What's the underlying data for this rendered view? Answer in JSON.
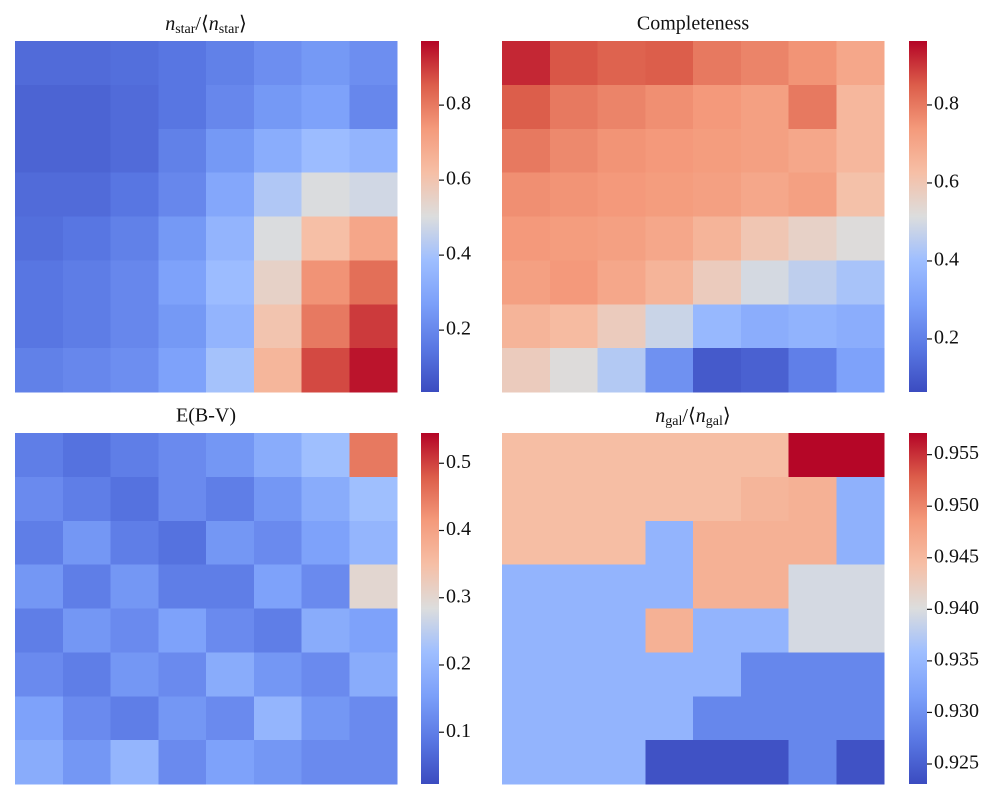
{
  "chart_data": [
    {
      "type": "heatmap",
      "title": [
        "n",
        "star",
        "/⟨",
        "n",
        "star",
        "⟩"
      ],
      "z": [
        [
          0.12,
          0.12,
          0.13,
          0.15,
          0.18,
          0.22,
          0.25,
          0.22
        ],
        [
          0.1,
          0.1,
          0.12,
          0.15,
          0.2,
          0.25,
          0.28,
          0.2
        ],
        [
          0.1,
          0.1,
          0.12,
          0.18,
          0.25,
          0.32,
          0.38,
          0.35
        ],
        [
          0.12,
          0.12,
          0.15,
          0.2,
          0.3,
          0.42,
          0.5,
          0.48
        ],
        [
          0.13,
          0.15,
          0.18,
          0.25,
          0.35,
          0.5,
          0.62,
          0.7
        ],
        [
          0.15,
          0.17,
          0.2,
          0.28,
          0.38,
          0.55,
          0.75,
          0.82
        ],
        [
          0.15,
          0.17,
          0.2,
          0.25,
          0.35,
          0.6,
          0.8,
          0.9
        ],
        [
          0.18,
          0.2,
          0.22,
          0.28,
          0.4,
          0.65,
          0.88,
          0.95
        ]
      ],
      "zlim": [
        0.035,
        0.971
      ],
      "cticks": [
        0.2,
        0.4,
        0.6,
        0.8
      ],
      "colormap": "coolwarm"
    },
    {
      "type": "heatmap",
      "title": "Completeness",
      "z": [
        [
          0.92,
          0.86,
          0.84,
          0.85,
          0.8,
          0.78,
          0.75,
          0.7
        ],
        [
          0.85,
          0.8,
          0.78,
          0.76,
          0.74,
          0.72,
          0.8,
          0.65
        ],
        [
          0.8,
          0.77,
          0.75,
          0.74,
          0.73,
          0.72,
          0.7,
          0.65
        ],
        [
          0.76,
          0.75,
          0.74,
          0.73,
          0.72,
          0.7,
          0.72,
          0.62
        ],
        [
          0.74,
          0.73,
          0.72,
          0.7,
          0.66,
          0.6,
          0.56,
          0.52
        ],
        [
          0.72,
          0.74,
          0.7,
          0.66,
          0.58,
          0.5,
          0.46,
          0.42
        ],
        [
          0.66,
          0.64,
          0.58,
          0.48,
          0.38,
          0.34,
          0.36,
          0.34
        ],
        [
          0.58,
          0.52,
          0.44,
          0.25,
          0.1,
          0.12,
          0.2,
          0.3
        ]
      ],
      "zlim": [
        0.064,
        0.964
      ],
      "cticks": [
        0.2,
        0.4,
        0.6,
        0.8
      ],
      "colormap": "coolwarm"
    },
    {
      "type": "heatmap",
      "title": "E(B-V)",
      "z": [
        [
          0.1,
          0.08,
          0.1,
          0.12,
          0.14,
          0.18,
          0.22,
          0.45
        ],
        [
          0.12,
          0.1,
          0.08,
          0.12,
          0.1,
          0.14,
          0.18,
          0.22
        ],
        [
          0.1,
          0.14,
          0.1,
          0.08,
          0.14,
          0.12,
          0.16,
          0.2
        ],
        [
          0.14,
          0.1,
          0.14,
          0.1,
          0.1,
          0.16,
          0.12,
          0.3
        ],
        [
          0.1,
          0.14,
          0.12,
          0.16,
          0.12,
          0.1,
          0.18,
          0.16
        ],
        [
          0.12,
          0.1,
          0.14,
          0.12,
          0.18,
          0.14,
          0.12,
          0.18
        ],
        [
          0.16,
          0.12,
          0.1,
          0.14,
          0.12,
          0.2,
          0.14,
          0.12
        ],
        [
          0.18,
          0.14,
          0.2,
          0.12,
          0.16,
          0.14,
          0.12,
          0.12
        ]
      ],
      "zlim": [
        0.023,
        0.545
      ],
      "cticks": [
        0.1,
        0.2,
        0.3,
        0.4,
        0.5
      ],
      "colormap": "coolwarm"
    },
    {
      "type": "heatmap",
      "title": [
        "n",
        "gal",
        "/⟨",
        "n",
        "gal",
        "⟩"
      ],
      "z": [
        [
          0.9445,
          0.9445,
          0.9445,
          0.9445,
          0.9445,
          0.9445,
          0.957,
          0.957
        ],
        [
          0.9445,
          0.9445,
          0.9445,
          0.9445,
          0.9445,
          0.9455,
          0.946,
          0.934
        ],
        [
          0.9445,
          0.9445,
          0.9445,
          0.9345,
          0.946,
          0.946,
          0.946,
          0.934
        ],
        [
          0.9345,
          0.9345,
          0.9345,
          0.9345,
          0.946,
          0.946,
          0.9395,
          0.9395
        ],
        [
          0.9345,
          0.9345,
          0.9345,
          0.946,
          0.9345,
          0.9345,
          0.9395,
          0.9395
        ],
        [
          0.9345,
          0.9345,
          0.9345,
          0.9345,
          0.9345,
          0.929,
          0.929,
          0.929
        ],
        [
          0.9345,
          0.9345,
          0.9345,
          0.9345,
          0.929,
          0.929,
          0.929,
          0.929
        ],
        [
          0.9345,
          0.9345,
          0.9345,
          0.9237,
          0.9237,
          0.9237,
          0.929,
          0.9237
        ]
      ],
      "zlim": [
        0.92306,
        0.9571
      ],
      "cticks": [
        0.925,
        {
          "value": 0.93,
          "label": "0.930"
        },
        0.935,
        {
          "value": 0.94,
          "label": "0.940"
        },
        0.945,
        {
          "value": 0.95,
          "label": "0.950"
        },
        0.955
      ],
      "colormap": "coolwarm"
    }
  ]
}
